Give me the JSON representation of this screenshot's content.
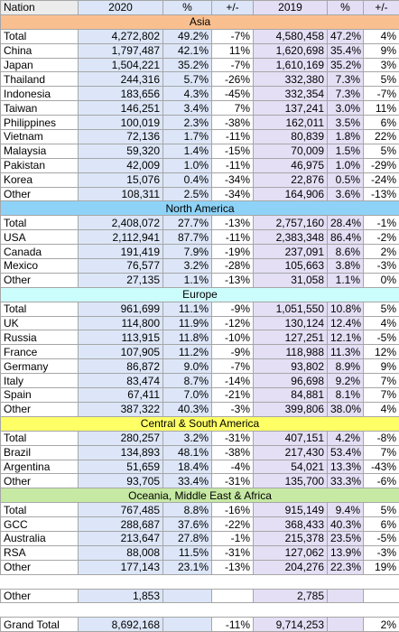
{
  "table": {
    "header": [
      "Nation",
      "2020",
      "%",
      "+/-",
      "2019",
      "%",
      "+/-"
    ],
    "sections": [
      {
        "title": "Asia",
        "rows": [
          [
            "Total",
            "4,272,802",
            "49.2%",
            "-7%",
            "4,580,458",
            "47.2%",
            "4%"
          ],
          [
            "China",
            "1,797,487",
            "42.1%",
            "11%",
            "1,620,698",
            "35.4%",
            "9%"
          ],
          [
            "Japan",
            "1,504,221",
            "35.2%",
            "-7%",
            "1,610,169",
            "35.2%",
            "3%"
          ],
          [
            "Thailand",
            "244,316",
            "5.7%",
            "-26%",
            "332,380",
            "7.3%",
            "5%"
          ],
          [
            "Indonesia",
            "183,656",
            "4.3%",
            "-45%",
            "332,354",
            "7.3%",
            "-7%"
          ],
          [
            "Taiwan",
            "146,251",
            "3.4%",
            "7%",
            "137,241",
            "3.0%",
            "11%"
          ],
          [
            "Philippines",
            "100,019",
            "2.3%",
            "-38%",
            "162,011",
            "3.5%",
            "6%"
          ],
          [
            "Vietnam",
            "72,136",
            "1.7%",
            "-11%",
            "80,839",
            "1.8%",
            "22%"
          ],
          [
            "Malaysia",
            "59,320",
            "1.4%",
            "-15%",
            "70,009",
            "1.5%",
            "5%"
          ],
          [
            "Pakistan",
            "42,009",
            "1.0%",
            "-11%",
            "46,975",
            "1.0%",
            "-29%"
          ],
          [
            "Korea",
            "15,076",
            "0.4%",
            "-34%",
            "22,876",
            "0.5%",
            "-24%"
          ],
          [
            "Other",
            "108,311",
            "2.5%",
            "-34%",
            "164,906",
            "3.6%",
            "-13%"
          ]
        ]
      },
      {
        "title": "North America",
        "rows": [
          [
            "Total",
            "2,408,072",
            "27.7%",
            "-13%",
            "2,757,160",
            "28.4%",
            "-1%"
          ],
          [
            "USA",
            "2,112,941",
            "87.7%",
            "-11%",
            "2,383,348",
            "86.4%",
            "-2%"
          ],
          [
            "Canada",
            "191,419",
            "7.9%",
            "-19%",
            "237,091",
            "8.6%",
            "2%"
          ],
          [
            "Mexico",
            "76,577",
            "3.2%",
            "-28%",
            "105,663",
            "3.8%",
            "-3%"
          ],
          [
            "Other",
            "27,135",
            "1.1%",
            "-13%",
            "31,058",
            "1.1%",
            "0%"
          ]
        ]
      },
      {
        "title": "Europe",
        "rows": [
          [
            "Total",
            "961,699",
            "11.1%",
            "-9%",
            "1,051,550",
            "10.8%",
            "5%"
          ],
          [
            "UK",
            "114,800",
            "11.9%",
            "-12%",
            "130,124",
            "12.4%",
            "4%"
          ],
          [
            "Russia",
            "113,915",
            "11.8%",
            "-10%",
            "127,251",
            "12.1%",
            "-5%"
          ],
          [
            "France",
            "107,905",
            "11.2%",
            "-9%",
            "118,988",
            "11.3%",
            "12%"
          ],
          [
            "Germany",
            "86,872",
            "9.0%",
            "-7%",
            "93,802",
            "8.9%",
            "9%"
          ],
          [
            "Italy",
            "83,474",
            "8.7%",
            "-14%",
            "96,698",
            "9.2%",
            "7%"
          ],
          [
            "Spain",
            "67,411",
            "7.0%",
            "-21%",
            "84,881",
            "8.1%",
            "7%"
          ],
          [
            "Other",
            "387,322",
            "40.3%",
            "-3%",
            "399,806",
            "38.0%",
            "4%"
          ]
        ]
      },
      {
        "title": "Central & South America",
        "rows": [
          [
            "Total",
            "280,257",
            "3.2%",
            "-31%",
            "407,151",
            "4.2%",
            "-8%"
          ],
          [
            "Brazil",
            "134,893",
            "48.1%",
            "-38%",
            "217,430",
            "53.4%",
            "7%"
          ],
          [
            "Argentina",
            "51,659",
            "18.4%",
            "-4%",
            "54,021",
            "13.3%",
            "-43%"
          ],
          [
            "Other",
            "93,705",
            "33.4%",
            "-31%",
            "135,700",
            "33.3%",
            "-6%"
          ]
        ]
      },
      {
        "title": "Oceania, Middle East & Africa",
        "rows": [
          [
            "Total",
            "767,485",
            "8.8%",
            "-16%",
            "915,149",
            "9.4%",
            "5%"
          ],
          [
            "GCC",
            "288,687",
            "37.6%",
            "-22%",
            "368,433",
            "40.3%",
            "6%"
          ],
          [
            "Australia",
            "213,647",
            "27.8%",
            "-1%",
            "215,378",
            "23.5%",
            "-5%"
          ],
          [
            "RSA",
            "88,008",
            "11.5%",
            "-31%",
            "127,062",
            "13.9%",
            "-3%"
          ],
          [
            "Other",
            "177,143",
            "23.1%",
            "-13%",
            "204,276",
            "22.3%",
            "19%"
          ]
        ]
      }
    ],
    "other": {
      "label": "Other",
      "v2020": "1,853",
      "v2019": "2,785"
    },
    "grand_total": {
      "label": "Grand Total",
      "v2020": "8,692,168",
      "change2020": "-11%",
      "v2019": "9,714,253",
      "change2019": "2%"
    }
  }
}
